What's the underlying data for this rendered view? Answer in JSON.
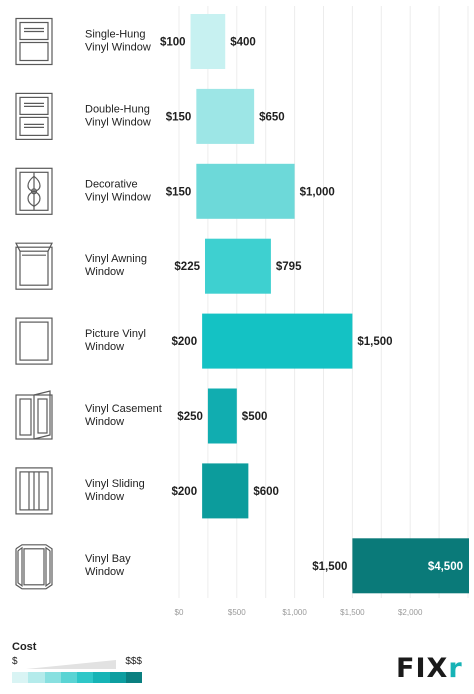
{
  "chart_data": {
    "type": "bar",
    "subtype": "floating-range",
    "orientation": "horizontal",
    "categories": [
      "Single-Hung Vinyl Window",
      "Double-Hung Vinyl Window",
      "Decorative Vinyl Window",
      "Vinyl Awning Window",
      "Picture Vinyl Window",
      "Vinyl Casement Window",
      "Vinyl Sliding Window",
      "Vinyl Bay Window"
    ],
    "category_lines": [
      [
        "Single-Hung",
        "Vinyl Window"
      ],
      [
        "Double-Hung",
        "Vinyl Window"
      ],
      [
        "Decorative",
        "Vinyl Window"
      ],
      [
        "Vinyl Awning",
        "Window"
      ],
      [
        "Picture Vinyl",
        "Window"
      ],
      [
        "Vinyl Casement",
        "Window"
      ],
      [
        "Vinyl Sliding",
        "Window"
      ],
      [
        "Vinyl Bay",
        "Window"
      ]
    ],
    "icons": [
      "single-hung-window-icon",
      "double-hung-window-icon",
      "decorative-window-icon",
      "awning-window-icon",
      "picture-window-icon",
      "casement-window-icon",
      "sliding-window-icon",
      "bay-window-icon"
    ],
    "low": [
      100,
      150,
      150,
      225,
      200,
      250,
      200,
      1500
    ],
    "high": [
      400,
      650,
      1000,
      795,
      1500,
      500,
      600,
      4500
    ],
    "low_labels": [
      "$100",
      "$150",
      "$150",
      "$225",
      "$200",
      "$250",
      "$200",
      "$1,500"
    ],
    "high_labels": [
      "$400",
      "$650",
      "$1,000",
      "$795",
      "$1,500",
      "$500",
      "$600",
      "$4,500"
    ],
    "colors": [
      "#c7f1f1",
      "#9de6e6",
      "#6dd9d9",
      "#3ed0d0",
      "#14c2c4",
      "#11adb0",
      "#0c9c9c",
      "#0a7a79"
    ],
    "xticks": [
      0,
      500,
      1000,
      1500,
      2000
    ],
    "xtick_labels": [
      "$0",
      "$500",
      "$1,000",
      "$1,500",
      "$2,000"
    ],
    "xlim": [
      0,
      2500
    ],
    "grid": true
  },
  "legend": {
    "title": "Cost",
    "low": "$",
    "high": "$$$",
    "colors": [
      "#d9f4f4",
      "#b4ebeb",
      "#88e0e0",
      "#5ad4d4",
      "#2ec7c8",
      "#15b4b6",
      "#0d9ea0",
      "#0a7f80"
    ]
  },
  "brand": {
    "main": "FIX",
    "accent": "r"
  }
}
